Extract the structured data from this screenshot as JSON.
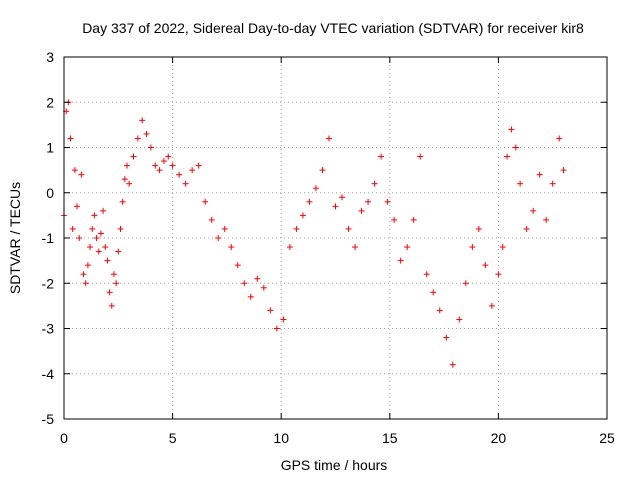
{
  "chart_data": {
    "type": "scatter",
    "title": "Day 337 of 2022, Sidereal Day-to-day VTEC variation (SDTVAR) for receiver kir8",
    "xlabel": "GPS time / hours",
    "ylabel": "SDTVAR / TECUs",
    "xlim": [
      0,
      25
    ],
    "ylim": [
      -5,
      3
    ],
    "xticks": [
      0,
      5,
      10,
      15,
      20,
      25
    ],
    "yticks": [
      -5,
      -4,
      -3,
      -2,
      -1,
      0,
      1,
      2,
      3
    ],
    "xtick_labels": [
      "0",
      "5",
      "10",
      "15",
      "20",
      "25"
    ],
    "ytick_labels": [
      "-5",
      "-4",
      "-3",
      "-2",
      "-1",
      "0",
      "1",
      "2",
      "3"
    ],
    "grid": true,
    "marker": "+",
    "color": "#ff0000",
    "series": [
      {
        "name": "SDTVAR",
        "x": [
          0.0,
          0.1,
          0.2,
          0.3,
          0.4,
          0.5,
          0.6,
          0.7,
          0.8,
          0.9,
          1.0,
          1.1,
          1.2,
          1.3,
          1.4,
          1.5,
          1.6,
          1.7,
          1.8,
          1.9,
          2.0,
          2.1,
          2.2,
          2.3,
          2.4,
          2.5,
          2.6,
          2.7,
          2.8,
          2.9,
          3.0,
          3.2,
          3.4,
          3.6,
          3.8,
          4.0,
          4.2,
          4.4,
          4.6,
          4.8,
          5.0,
          5.3,
          5.6,
          5.9,
          6.2,
          6.5,
          6.8,
          7.1,
          7.4,
          7.7,
          8.0,
          8.3,
          8.6,
          8.9,
          9.2,
          9.5,
          9.8,
          10.1,
          10.4,
          10.7,
          11.0,
          11.3,
          11.6,
          11.9,
          12.2,
          12.5,
          12.8,
          13.1,
          13.4,
          13.7,
          14.0,
          14.3,
          14.6,
          14.9,
          15.2,
          15.5,
          15.8,
          16.1,
          16.4,
          16.7,
          17.0,
          17.3,
          17.6,
          17.9,
          18.2,
          18.5,
          18.8,
          19.1,
          19.4,
          19.7,
          20.0,
          20.2,
          20.4,
          20.6,
          20.8,
          21.0,
          21.3,
          21.6,
          21.9,
          22.2,
          22.5,
          22.8,
          23.0
        ],
        "y": [
          -0.5,
          1.8,
          2.0,
          1.2,
          -0.8,
          0.5,
          -0.3,
          -1.0,
          0.4,
          -1.8,
          -2.0,
          -1.6,
          -1.2,
          -0.8,
          -0.5,
          -1.0,
          -1.3,
          -0.9,
          -0.4,
          -1.2,
          -1.5,
          -2.2,
          -2.5,
          -1.8,
          -2.0,
          -1.3,
          -0.8,
          -0.2,
          0.3,
          0.6,
          0.2,
          0.8,
          1.2,
          1.6,
          1.3,
          1.0,
          0.6,
          0.5,
          0.7,
          0.8,
          0.6,
          0.4,
          0.2,
          0.5,
          0.6,
          -0.2,
          -0.6,
          -1.0,
          -0.8,
          -1.2,
          -1.6,
          -2.0,
          -2.3,
          -1.9,
          -2.1,
          -2.6,
          -3.0,
          -2.8,
          -1.2,
          -0.8,
          -0.5,
          -0.2,
          0.1,
          0.5,
          1.2,
          -0.3,
          -0.1,
          -0.8,
          -1.2,
          -0.4,
          -0.2,
          0.2,
          0.8,
          -0.2,
          -0.6,
          -1.5,
          -1.2,
          -0.6,
          0.8,
          -1.8,
          -2.2,
          -2.6,
          -3.2,
          -3.8,
          -2.8,
          -2.0,
          -1.2,
          -0.8,
          -1.6,
          -2.5,
          -1.8,
          -1.2,
          0.8,
          1.4,
          1.0,
          0.2,
          -0.8,
          -0.4,
          0.4,
          -0.6,
          0.2,
          1.2,
          0.5
        ]
      }
    ]
  }
}
